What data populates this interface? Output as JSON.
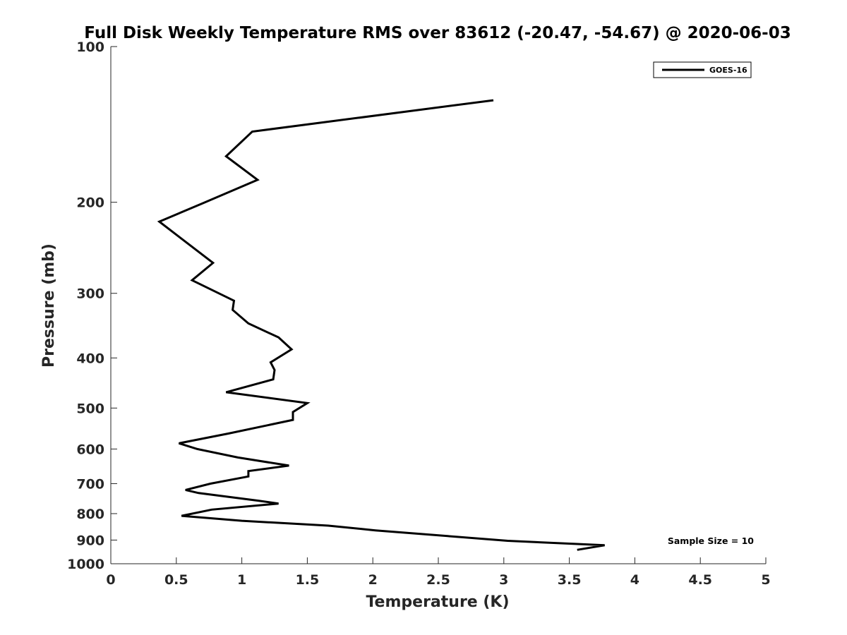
{
  "chart_data": {
    "type": "line",
    "title": "Full Disk Weekly Temperature RMS over 83612 (-20.47, -54.67) @ 2020-06-03",
    "xlabel": "Temperature (K)",
    "ylabel": "Pressure (mb)",
    "xlim": [
      0,
      5
    ],
    "ylim": [
      100,
      1000
    ],
    "y_scale": "log",
    "y_reversed": true,
    "x_ticks": [
      "0",
      "0.5",
      "1",
      "1.5",
      "2",
      "2.5",
      "3",
      "3.5",
      "4",
      "4.5",
      "5"
    ],
    "y_ticks": [
      "100",
      "200",
      "300",
      "400",
      "500",
      "600",
      "700",
      "800",
      "900",
      "1000"
    ],
    "grid": false,
    "legend": {
      "placement": "top-right",
      "entries": [
        "GOES-16"
      ]
    },
    "annotation": "Sample Size = 10",
    "series": [
      {
        "name": "GOES-16",
        "color": "#000000",
        "points": [
          [
            2.92,
            127
          ],
          [
            1.08,
            146
          ],
          [
            0.88,
            163
          ],
          [
            1.12,
            181
          ],
          [
            0.7,
            201
          ],
          [
            0.37,
            218
          ],
          [
            0.78,
            262
          ],
          [
            0.62,
            283
          ],
          [
            0.94,
            310
          ],
          [
            0.93,
            323
          ],
          [
            1.05,
            343
          ],
          [
            1.28,
            365
          ],
          [
            1.38,
            385
          ],
          [
            1.22,
            408
          ],
          [
            1.25,
            422
          ],
          [
            1.24,
            440
          ],
          [
            0.88,
            466
          ],
          [
            1.5,
            489
          ],
          [
            1.39,
            509
          ],
          [
            1.39,
            527
          ],
          [
            0.9,
            560
          ],
          [
            0.52,
            585
          ],
          [
            0.66,
            600
          ],
          [
            0.97,
            623
          ],
          [
            1.36,
            646
          ],
          [
            1.05,
            662
          ],
          [
            1.05,
            678
          ],
          [
            0.76,
            700
          ],
          [
            0.57,
            720
          ],
          [
            0.67,
            730
          ],
          [
            1.12,
            755
          ],
          [
            1.28,
            765
          ],
          [
            0.77,
            786
          ],
          [
            0.54,
            808
          ],
          [
            1.0,
            826
          ],
          [
            1.66,
            844
          ],
          [
            2.02,
            862
          ],
          [
            3.03,
            903
          ],
          [
            3.77,
            921
          ],
          [
            3.56,
            940
          ]
        ]
      }
    ]
  }
}
